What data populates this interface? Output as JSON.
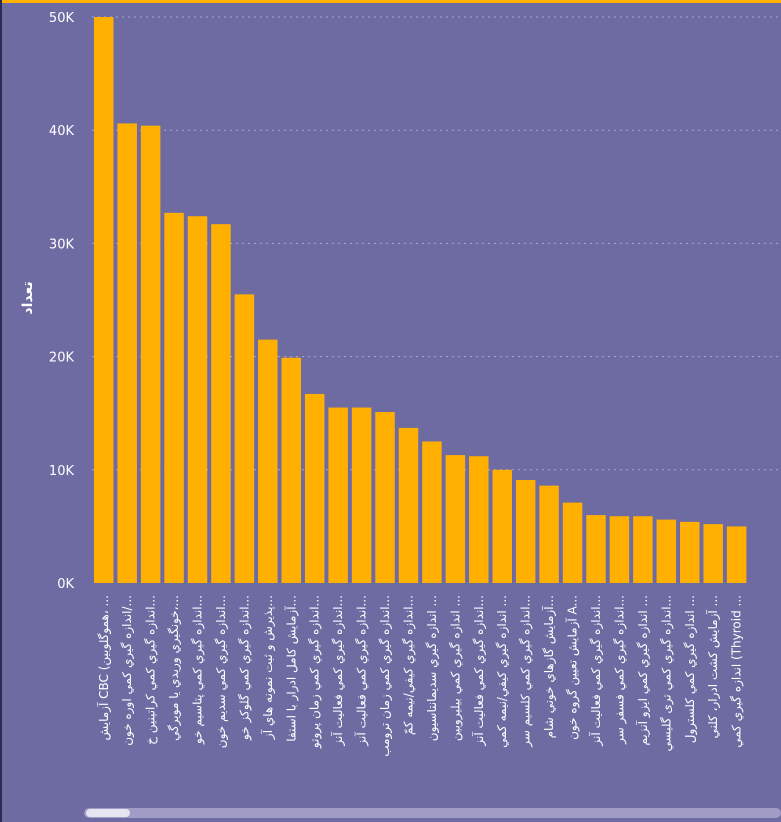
{
  "chart_data": {
    "type": "bar",
    "ylabel": "تعداد",
    "xlabel": "",
    "ylim": [
      0,
      50000
    ],
    "yticks": [
      "0K",
      "10K",
      "20K",
      "30K",
      "40K",
      "50K"
    ],
    "grid": true,
    "categories": [
      "آزمايش CBC (هموگلوبين، ...",
      "اندازه گيري كمي اوره خون/...",
      "اندازه گيري كمي كراتينين خ...",
      "خونگيري وريدي يا مويرگي،...",
      "اندازه گيري كمي پتاسيم خو...",
      "اندازه گيري كمي سديم خون...",
      "اندازه گيري كمي گلوكز خو...",
      "پذيرش و ثبت نمونه هاي آز...",
      "آزمايش كامل ادرار با استفا...",
      "اندازه گيري كمي زمان پروتو...",
      "اندازه گيري كمي فعاليت آنز...",
      "اندازه گيري كمي فعاليت آنز...",
      "اندازه گيري كمي زمان ترومب...",
      "اندازه گيري كيفي/نيمه كمّ...",
      "اندازه گيري سديمانتاسيون ...",
      "اندازه گيري كمي بيليروبين ...",
      "اندازه گيري كمي فعاليت آنز...",
      "اندازه گيري كيفي/نيمه كمي ...",
      "اندازه گيري كمي كلسيم سر...",
      "آزمايش گازهاي خوني شام...",
      "آزمايش تعيين گروه خون A...",
      "اندازه گيري كمي فعاليت آنز...",
      "اندازه گيري كمي فسفر سر...",
      "اندازه گيري كمي ايزو آنزيم ...",
      "اندازه گيري كمي ترى گليسي...",
      "اندازه گيري كمي كلسترول ...",
      "آزمايش كشت ادرار، كلني ...",
      "اندازه گيري كمي (Thyroid ..."
    ],
    "values": [
      50000,
      40600,
      40400,
      32700,
      32400,
      31700,
      25500,
      21500,
      19900,
      16700,
      15500,
      15500,
      15100,
      13700,
      12500,
      11300,
      11200,
      10000,
      9100,
      8600,
      7100,
      6000,
      5900,
      5900,
      5600,
      5400,
      5200,
      5000
    ],
    "colors": {
      "bar": "#FFB000",
      "background": "#6E6BA3",
      "grid": "#A9A7CF",
      "text": "#FFFFFF"
    }
  }
}
